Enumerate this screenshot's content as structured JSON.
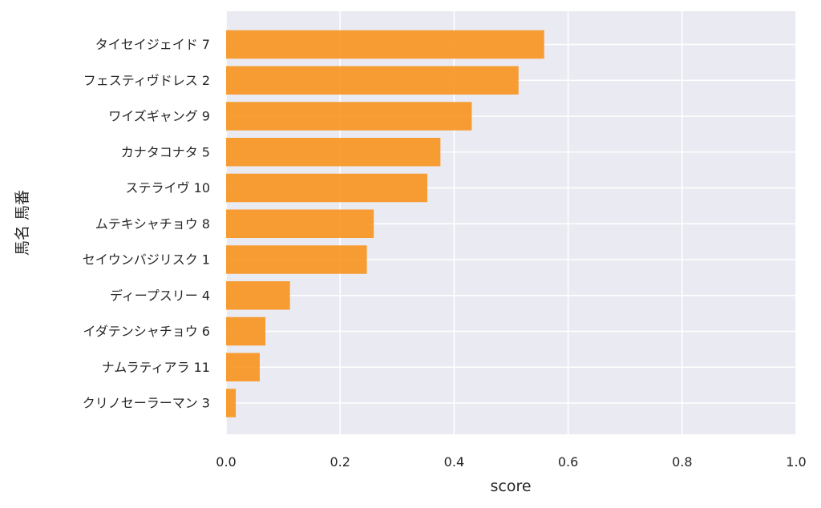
{
  "chart_data": {
    "type": "bar",
    "orientation": "horizontal",
    "categories": [
      "タイセイジェイド 7",
      "フェスティヴドレス 2",
      "ワイズギャング 9",
      "カナタコナタ 5",
      "ステライヴ 10",
      "ムテキシャチョウ 8",
      "セイウンバジリスク 1",
      "ディープスリー 4",
      "イダテンシャチョウ 6",
      "ナムラティアラ 11",
      "クリノセーラーマン 3"
    ],
    "values": [
      0.558,
      0.513,
      0.431,
      0.376,
      0.353,
      0.259,
      0.247,
      0.112,
      0.069,
      0.059,
      0.017
    ],
    "xlabel": "score",
    "ylabel": "馬名 馬番",
    "xlim": [
      0.0,
      1.0
    ],
    "xticks": [
      "0.0",
      "0.2",
      "0.4",
      "0.6",
      "0.8",
      "1.0"
    ],
    "grid": true,
    "colors": {
      "bar": "#f7931e",
      "plot_background": "#eaeaf2",
      "grid": "#ffffff"
    }
  }
}
